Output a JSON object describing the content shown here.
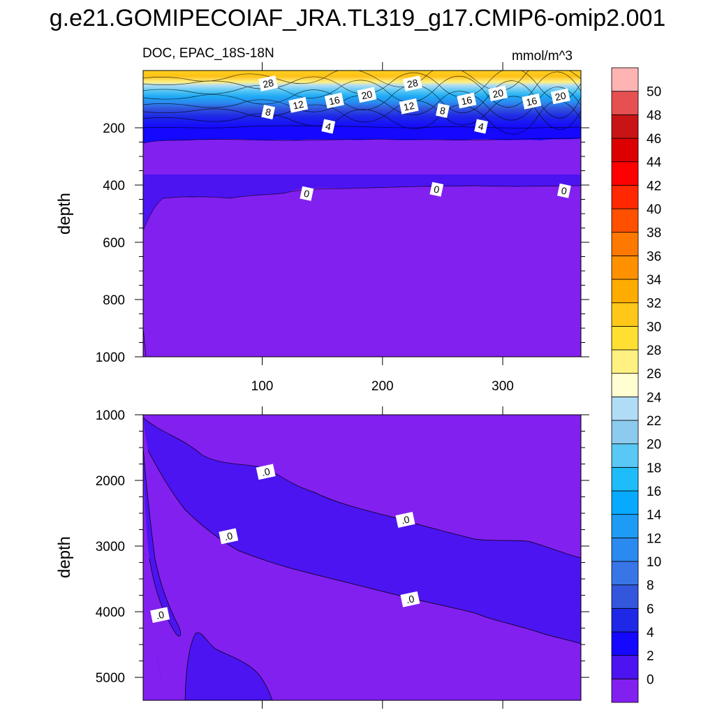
{
  "title": "g.e21.GOMIPECOIAF_JRA.TL319_g17.CMIP6-omip2.001",
  "chart_data": [
    {
      "type": "heatmap",
      "panel": "upper",
      "variable_label": "DOC, EPAC_18S-18N",
      "units": "mmol/m^3",
      "xlabel": "",
      "ylabel": "depth",
      "xlim": [
        1,
        365
      ],
      "ylim": [
        1000,
        0
      ],
      "x_ticks": [
        100,
        200,
        300
      ],
      "y_ticks": [
        200,
        400,
        600,
        800,
        1000
      ],
      "contour_labels": [
        {
          "text": "28",
          "x": 105,
          "y": 45
        },
        {
          "text": "28",
          "x": 225,
          "y": 45
        },
        {
          "text": "12",
          "x": 130,
          "y": 120
        },
        {
          "text": "16",
          "x": 160,
          "y": 105
        },
        {
          "text": "20",
          "x": 187,
          "y": 85
        },
        {
          "text": "12",
          "x": 222,
          "y": 125
        },
        {
          "text": "8",
          "x": 250,
          "y": 140
        },
        {
          "text": "16",
          "x": 270,
          "y": 105
        },
        {
          "text": "20",
          "x": 296,
          "y": 80
        },
        {
          "text": "16",
          "x": 324,
          "y": 108
        },
        {
          "text": "20",
          "x": 348,
          "y": 90
        },
        {
          "text": "8",
          "x": 105,
          "y": 145
        },
        {
          "text": "4",
          "x": 155,
          "y": 195
        },
        {
          "text": "4",
          "x": 282,
          "y": 195
        },
        {
          "text": "0",
          "x": 137,
          "y": 430
        },
        {
          "text": "0",
          "x": 245,
          "y": 415
        },
        {
          "text": "0",
          "x": 351,
          "y": 420
        }
      ]
    },
    {
      "type": "heatmap",
      "panel": "lower",
      "xlabel": "",
      "ylabel": "depth",
      "xlim": [
        1,
        365
      ],
      "ylim": [
        5350,
        1000
      ],
      "y_ticks": [
        1000,
        2000,
        3000,
        4000,
        5000
      ],
      "contour_labels": [
        {
          "text": ".0",
          "x": 103,
          "y": 1870
        },
        {
          "text": ".0",
          "x": 72,
          "y": 2850
        },
        {
          "text": ".0",
          "x": 219,
          "y": 2600
        },
        {
          "text": ".0",
          "x": 223,
          "y": 3810
        },
        {
          "text": ".0",
          "x": 15,
          "y": 4050
        }
      ]
    }
  ],
  "colorbar": {
    "levels": [
      "0",
      "2",
      "4",
      "6",
      "8",
      "10",
      "12",
      "14",
      "16",
      "18",
      "20",
      "22",
      "24",
      "26",
      "28",
      "30",
      "32",
      "34",
      "36",
      "38",
      "40",
      "42",
      "44",
      "46",
      "48",
      "50"
    ],
    "colors": [
      "#8220f0",
      "#4b14f0",
      "#1408ff",
      "#1e28e6",
      "#3256dc",
      "#3876e8",
      "#2a8aef",
      "#1e9cf5",
      "#08aaff",
      "#1ebcf8",
      "#5ac8f4",
      "#8ccaee",
      "#b0dcf6",
      "#ffffd2",
      "#fff082",
      "#ffe032",
      "#ffc818",
      "#ffac00",
      "#ff9000",
      "#ff7800",
      "#ff5000",
      "#ff2800",
      "#ff0000",
      "#dc0000",
      "#c81414",
      "#e65050",
      "#ffb4b4"
    ]
  }
}
